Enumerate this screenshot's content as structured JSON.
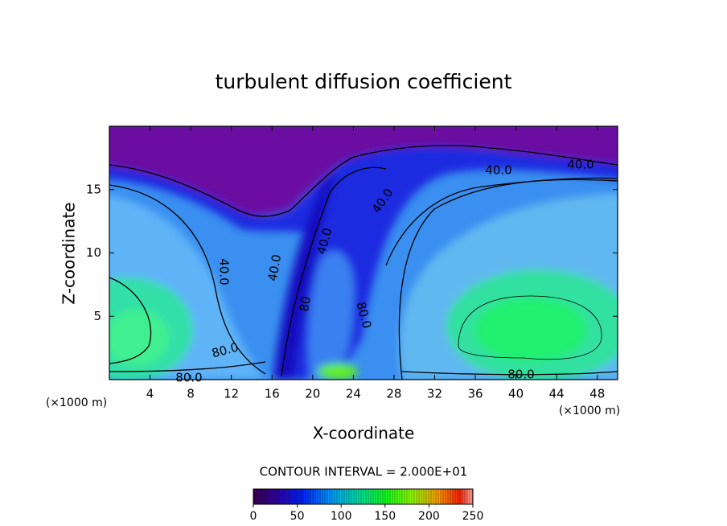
{
  "chart_data": {
    "type": "contour",
    "title": "turbulent diffusion coefficient",
    "xlabel": "X-coordinate",
    "ylabel": "Z-coordinate",
    "x_unit": "(×1000 m)",
    "x_unit_right": "(×1000 m)",
    "xlim": [
      0,
      50
    ],
    "xticks": [
      4,
      8,
      12,
      16,
      20,
      24,
      28,
      32,
      36,
      40,
      44,
      48
    ],
    "ylim": [
      0,
      20
    ],
    "yticks": [
      5,
      10,
      15
    ],
    "contour_labels": [
      "80.0",
      "40.0",
      "40.0",
      "40.0",
      "40.0",
      "40.0",
      "40.0",
      "80",
      "80.0",
      "80.0",
      "80.0"
    ],
    "contour_interval": "CONTOUR INTERVAL = 2.000E+01",
    "colorbar_lim": [
      0,
      250
    ],
    "colorbar_ticks": [
      0,
      50,
      100,
      150,
      200,
      250
    ]
  }
}
